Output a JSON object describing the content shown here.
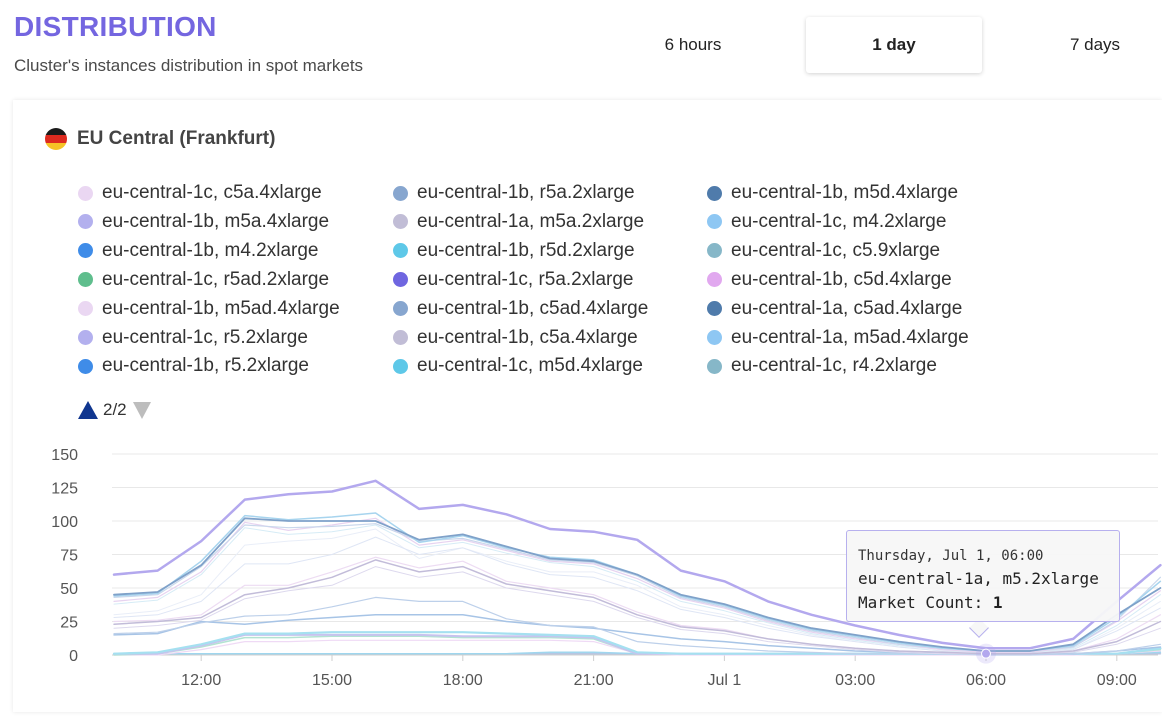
{
  "header": {
    "title": "DISTRIBUTION",
    "subtitle": "Cluster's instances distribution in spot markets"
  },
  "time_ranges": [
    "6 hours",
    "1 day",
    "7 days"
  ],
  "selected_range": "1 day",
  "region": {
    "label": "EU Central (Frankfurt)",
    "flag_colors": [
      "#1a1a1a",
      "#dd2a1f",
      "#f6c326"
    ]
  },
  "legend": {
    "items": [
      {
        "label": "eu-central-1c, c5a.4xlarge",
        "color": "#ead7f2"
      },
      {
        "label": "eu-central-1b, m5a.4xlarge",
        "color": "#b3b0ee"
      },
      {
        "label": "eu-central-1b, m4.2xlarge",
        "color": "#3f8ce8"
      },
      {
        "label": "eu-central-1c, r5ad.2xlarge",
        "color": "#5fbe8d"
      },
      {
        "label": "eu-central-1b, m5ad.4xlarge",
        "color": "#ead7f2"
      },
      {
        "label": "eu-central-1c, r5.2xlarge",
        "color": "#b3b0ee"
      },
      {
        "label": "eu-central-1b, r5.2xlarge",
        "color": "#3f8ce8"
      },
      {
        "label": "eu-central-1b, r5a.2xlarge",
        "color": "#87a6cf"
      },
      {
        "label": "eu-central-1a, m5a.2xlarge",
        "color": "#c1bdd6"
      },
      {
        "label": "eu-central-1b, r5d.2xlarge",
        "color": "#5ec8e8"
      },
      {
        "label": "eu-central-1c, r5a.2xlarge",
        "color": "#6f66e0"
      },
      {
        "label": "eu-central-1b, c5ad.4xlarge",
        "color": "#87a6cf"
      },
      {
        "label": "eu-central-1b, c5a.4xlarge",
        "color": "#c1bdd6"
      },
      {
        "label": "eu-central-1c, m5d.4xlarge",
        "color": "#5ec8e8"
      },
      {
        "label": "eu-central-1b, m5d.4xlarge",
        "color": "#4f7bab"
      },
      {
        "label": "eu-central-1c, m4.2xlarge",
        "color": "#8ec7f3"
      },
      {
        "label": "eu-central-1c, c5.9xlarge",
        "color": "#86b7c8"
      },
      {
        "label": "eu-central-1b, c5d.4xlarge",
        "color": "#e1a8ef"
      },
      {
        "label": "eu-central-1a, c5ad.4xlarge",
        "color": "#4f7bab"
      },
      {
        "label": "eu-central-1a, m5ad.4xlarge",
        "color": "#8ec7f3"
      },
      {
        "label": "eu-central-1c, r4.2xlarge",
        "color": "#86b7c8"
      }
    ],
    "pager_text": "2/2"
  },
  "tooltip": {
    "date": "Thursday, Jul 1, 06:00",
    "series": "eu-central-1a, m5.2xlarge",
    "value_label": "Market Count: ",
    "value": "1"
  },
  "chart_data": {
    "type": "line",
    "xlabel": "",
    "ylabel": "",
    "ylim": [
      0,
      150
    ],
    "yticks": [
      0,
      25,
      50,
      75,
      100,
      125,
      150
    ],
    "x_tick_labels": [
      "12:00",
      "15:00",
      "18:00",
      "21:00",
      "Jul 1",
      "03:00",
      "06:00",
      "09:00"
    ],
    "x": [
      "Jun 30 10:00",
      "Jun 30 11:00",
      "Jun 30 12:00",
      "Jun 30 13:00",
      "Jun 30 14:00",
      "Jun 30 15:00",
      "Jun 30 16:00",
      "Jun 30 17:00",
      "Jun 30 18:00",
      "Jun 30 19:00",
      "Jun 30 20:00",
      "Jun 30 21:00",
      "Jun 30 22:00",
      "Jun 30 23:00",
      "Jul 1 00:00",
      "Jul 1 01:00",
      "Jul 1 02:00",
      "Jul 1 03:00",
      "Jul 1 04:00",
      "Jul 1 05:00",
      "Jul 1 06:00",
      "Jul 1 07:00",
      "Jul 1 08:00",
      "Jul 1 09:00",
      "Jul 1 10:00"
    ],
    "grid": true,
    "series": [
      {
        "color": "#b3a8ee",
        "width": 2.5,
        "values": [
          60,
          63,
          85,
          116,
          120,
          122,
          130,
          109,
          112,
          105,
          94,
          92,
          86,
          63,
          55,
          40,
          30,
          22,
          15,
          9,
          5,
          5,
          12,
          40,
          67
        ]
      },
      {
        "color": "#7fa1c9",
        "width": 1.8,
        "values": [
          45,
          47,
          67,
          102,
          100,
          100,
          100,
          86,
          90,
          81,
          72,
          70,
          60,
          45,
          38,
          28,
          20,
          15,
          10,
          6,
          3,
          3,
          8,
          30,
          50
        ]
      },
      {
        "color": "#a7d4ee",
        "width": 1.5,
        "values": [
          44,
          46,
          70,
          104,
          101,
          103,
          106,
          84,
          89,
          80,
          73,
          71,
          60,
          44,
          37,
          27,
          19,
          14,
          9,
          5,
          3,
          3,
          7,
          28,
          55
        ]
      },
      {
        "color": "#c9d7ec",
        "width": 1.2,
        "values": [
          43,
          45,
          66,
          97,
          95,
          96,
          98,
          85,
          87,
          79,
          71,
          69,
          59,
          43,
          36,
          26,
          18,
          13,
          8,
          5,
          3,
          3,
          6,
          26,
          58
        ]
      },
      {
        "color": "#e7d3f0",
        "width": 1.2,
        "values": [
          40,
          43,
          62,
          99,
          93,
          97,
          102,
          82,
          86,
          78,
          70,
          68,
          57,
          42,
          35,
          25,
          17,
          12,
          8,
          4,
          2,
          2,
          6,
          25,
          48
        ]
      },
      {
        "color": "#d6ecf6",
        "width": 1.0,
        "values": [
          38,
          41,
          60,
          95,
          90,
          92,
          97,
          80,
          84,
          76,
          69,
          66,
          55,
          40,
          33,
          24,
          16,
          11,
          7,
          4,
          2,
          2,
          5,
          22,
          45
        ]
      },
      {
        "color": "#c2bcd9",
        "width": 1.5,
        "values": [
          23,
          25,
          28,
          45,
          50,
          58,
          71,
          62,
          66,
          53,
          48,
          43,
          30,
          21,
          18,
          12,
          8,
          5,
          3,
          2,
          1,
          1,
          3,
          10,
          25
        ]
      },
      {
        "color": "#eddcf3",
        "width": 1.2,
        "values": [
          25,
          26,
          30,
          52,
          52,
          62,
          73,
          65,
          70,
          55,
          50,
          45,
          32,
          22,
          19,
          12,
          8,
          5,
          3,
          2,
          1,
          1,
          3,
          12,
          30
        ]
      },
      {
        "color": "#ddd9ee",
        "width": 1.0,
        "values": [
          20,
          22,
          26,
          42,
          48,
          52,
          66,
          58,
          62,
          50,
          45,
          40,
          28,
          19,
          16,
          10,
          7,
          4,
          2,
          1,
          1,
          1,
          2,
          8,
          20
        ]
      },
      {
        "color": "#dfe6f5",
        "width": 1.0,
        "values": [
          28,
          30,
          40,
          68,
          68,
          75,
          88,
          75,
          80,
          68,
          60,
          58,
          48,
          34,
          28,
          20,
          14,
          10,
          6,
          3,
          2,
          2,
          4,
          18,
          35
        ]
      },
      {
        "color": "#e9eef8",
        "width": 1.0,
        "values": [
          30,
          33,
          45,
          82,
          85,
          87,
          94,
          72,
          80,
          70,
          62,
          62,
          52,
          36,
          30,
          22,
          15,
          10,
          6,
          3,
          2,
          2,
          4,
          20,
          40
        ]
      },
      {
        "color": "#bdd0ea",
        "width": 1.2,
        "values": [
          16,
          17,
          24,
          29,
          30,
          36,
          43,
          40,
          40,
          27,
          22,
          21,
          10,
          7,
          5,
          3,
          2,
          1,
          1,
          1,
          0,
          0,
          1,
          3,
          8
        ]
      },
      {
        "color": "#a7c4e6",
        "width": 1.5,
        "values": [
          15,
          16,
          25,
          23,
          26,
          28,
          30,
          30,
          30,
          25,
          22,
          20,
          16,
          12,
          10,
          7,
          5,
          3,
          2,
          1,
          1,
          1,
          1,
          3,
          6
        ]
      },
      {
        "color": "#a5e0f0",
        "width": 2.2,
        "values": [
          1,
          2,
          8,
          16,
          16,
          17,
          17,
          17,
          17,
          16,
          15,
          14,
          2,
          1,
          1,
          1,
          1,
          1,
          1,
          1,
          1,
          1,
          1,
          1,
          5
        ]
      },
      {
        "color": "#c7c3ee",
        "width": 2.0,
        "values": [
          1,
          1,
          7,
          15,
          15,
          15,
          15,
          15,
          14,
          14,
          14,
          13,
          1,
          1,
          1,
          1,
          1,
          1,
          1,
          1,
          1,
          1,
          1,
          1,
          5
        ]
      },
      {
        "color": "#b3e3d2",
        "width": 1.5,
        "values": [
          0,
          1,
          6,
          13,
          13,
          14,
          14,
          14,
          13,
          13,
          13,
          12,
          1,
          1,
          1,
          1,
          1,
          1,
          1,
          1,
          1,
          1,
          1,
          1,
          4
        ]
      },
      {
        "color": "#efdaf5",
        "width": 1.2,
        "values": [
          0,
          0,
          4,
          10,
          10,
          11,
          11,
          11,
          11,
          11,
          11,
          10,
          1,
          0,
          0,
          0,
          0,
          0,
          0,
          0,
          0,
          0,
          0,
          1,
          3
        ]
      },
      {
        "color": "#9fd6ee",
        "width": 1.5,
        "values": [
          1,
          1,
          1,
          1,
          1,
          1,
          1,
          1,
          1,
          1,
          2,
          2,
          1,
          1,
          1,
          1,
          1,
          1,
          1,
          1,
          1,
          1,
          1,
          1,
          2
        ]
      },
      {
        "color": "#b7c6e2",
        "width": 1.5,
        "values": [
          1,
          1,
          1,
          1,
          1,
          1,
          1,
          1,
          1,
          1,
          1,
          1,
          1,
          1,
          1,
          1,
          1,
          1,
          1,
          1,
          1,
          1,
          1,
          1,
          1
        ]
      }
    ],
    "highlight": {
      "x": "Jul 1 06:00",
      "y": 1,
      "color": "#b3a8ee"
    }
  }
}
